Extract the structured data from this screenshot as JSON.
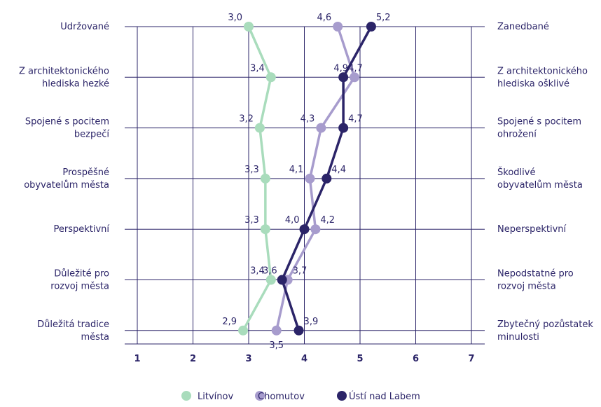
{
  "chart_data": {
    "type": "line",
    "orientation": "horizontal-profile",
    "left_labels": [
      [
        "Udržované"
      ],
      [
        "Z architektonického",
        "hlediska hezké"
      ],
      [
        "Spojené s pocitem",
        "bezpečí"
      ],
      [
        "Prospěšné",
        "obyvatelům města"
      ],
      [
        "Perspektivní"
      ],
      [
        "Důležité pro",
        "rozvoj města"
      ],
      [
        "Důležitá tradice",
        "města"
      ]
    ],
    "right_labels": [
      [
        "Zanedbané"
      ],
      [
        "Z architektonického",
        "hlediska ošklivé"
      ],
      [
        "Spojené s pocitem",
        "ohrožení"
      ],
      [
        "Škodlivé",
        "obyvatelům města"
      ],
      [
        "Neperspektivní"
      ],
      [
        "Nepodstatné pro",
        "rozvoj města"
      ],
      [
        "Zbytečný pozůstatek",
        "minulosti"
      ]
    ],
    "x_ticks": [
      "1",
      "2",
      "3",
      "4",
      "5",
      "6",
      "7"
    ],
    "xlim": [
      1,
      7
    ],
    "grid": true,
    "legend_position": "bottom",
    "series": [
      {
        "name": "Litvínov",
        "color": "#a9dcbc",
        "values": [
          3.0,
          3.4,
          3.2,
          3.3,
          3.3,
          3.4,
          2.9
        ],
        "labels": [
          "3,0",
          "3,4",
          "3,2",
          "3,3",
          "3,3",
          "3,4",
          "2,9"
        ]
      },
      {
        "name": "Chomutov",
        "color": "#a79ccd",
        "values": [
          4.6,
          4.9,
          4.3,
          4.1,
          4.2,
          3.7,
          3.5
        ],
        "labels": [
          "4,6",
          "4,9",
          "4,3",
          "4,1",
          "4,2",
          "3,7",
          "3,5"
        ]
      },
      {
        "name": "Ústí nad Labem",
        "color": "#2b2468",
        "values": [
          5.2,
          4.7,
          4.7,
          4.4,
          4.0,
          3.6,
          3.9
        ],
        "labels": [
          "5,2",
          "4,7",
          "4,7",
          "4,4",
          "4,0",
          "3,6",
          "3,9"
        ]
      }
    ]
  }
}
